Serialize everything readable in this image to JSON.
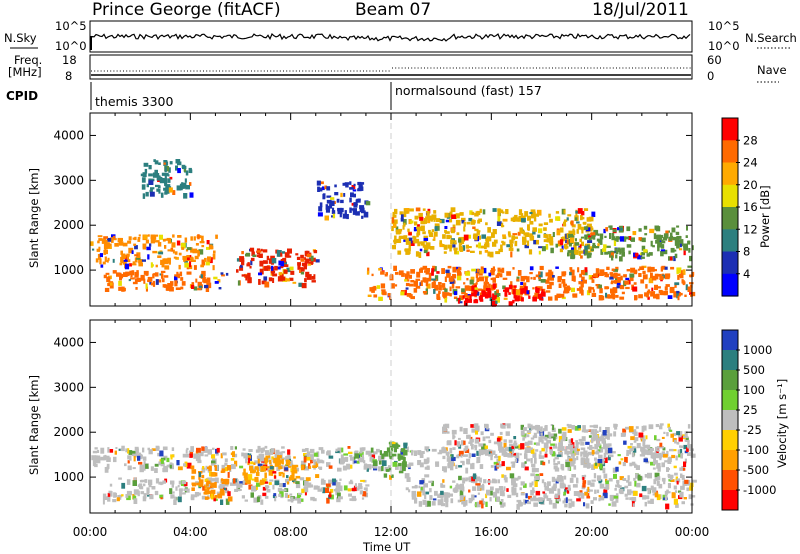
{
  "header": {
    "station": "Prince George (fitACF)",
    "beam": "Beam 07",
    "date": "18/Jul/2011"
  },
  "small_panels": {
    "nsky_label": "N.Sky",
    "nsky_ticks": [
      "10^5",
      "10^0"
    ],
    "nsearch_label": "N.Search",
    "nsearch_ticks": [
      "10^5",
      "10^0"
    ],
    "freq_label_1": "Freq.",
    "freq_label_2": "[MHz]",
    "freq_ticks": [
      "18",
      "8"
    ],
    "nave_label": "Nave",
    "nave_ticks": [
      "60",
      "0"
    ],
    "cpid_label": "CPID",
    "cpid_segments": [
      {
        "label": "themis 3300",
        "start_hour": 0
      },
      {
        "label": "normalsound (fast) 157",
        "start_hour": 12
      }
    ]
  },
  "chart_data": [
    {
      "type": "heatmap",
      "title": "",
      "xlabel": "",
      "ylabel": "Slant Range [km]",
      "xlim_hours": [
        0,
        24
      ],
      "ylim": [
        200,
        4500
      ],
      "y_ticks": [
        "4000",
        "3000",
        "2000",
        "1000"
      ],
      "colorbar": {
        "label": "Power [dB]",
        "ticks": [
          "28",
          "24",
          "20",
          "16",
          "12",
          "8",
          "4"
        ],
        "colors": [
          "#ff0000",
          "#ff6a00",
          "#ffaa00",
          "#e8e000",
          "#5a8f3c",
          "#2c7f7f",
          "#1c2fb3",
          "#0000ff"
        ]
      },
      "regions": [
        {
          "t0": 0.0,
          "t1": 5.0,
          "r0": 1100,
          "r1": 1800,
          "color": "#ff8c00"
        },
        {
          "t0": 0.5,
          "t1": 5.5,
          "r0": 600,
          "r1": 1000,
          "color": "#ff6a00"
        },
        {
          "t0": 5.8,
          "t1": 9.0,
          "r0": 700,
          "r1": 1500,
          "color": "#e82000"
        },
        {
          "t0": 2.0,
          "t1": 4.0,
          "r0": 2700,
          "r1": 3500,
          "color": "#2c7f7f"
        },
        {
          "t0": 9.0,
          "t1": 11.0,
          "r0": 2200,
          "r1": 3000,
          "color": "#1c2fb3"
        },
        {
          "t0": 11.0,
          "t1": 24.0,
          "r0": 400,
          "r1": 1100,
          "color": "#ff6a00"
        },
        {
          "t0": 12.0,
          "t1": 20.0,
          "r0": 1400,
          "r1": 2400,
          "color": "#e8b000"
        },
        {
          "t0": 14.5,
          "t1": 18.0,
          "r0": 300,
          "r1": 700,
          "color": "#ff0000"
        },
        {
          "t0": 19.0,
          "t1": 24.0,
          "r0": 1300,
          "r1": 2000,
          "color": "#5a8f3c"
        }
      ]
    },
    {
      "type": "heatmap",
      "title": "",
      "xlabel": "Time UT",
      "ylabel": "Slant Range [km]",
      "xlim_hours": [
        0,
        24
      ],
      "ylim": [
        200,
        4500
      ],
      "y_ticks": [
        "4000",
        "3000",
        "2000",
        "1000"
      ],
      "x_ticks": [
        "00:00",
        "04:00",
        "08:00",
        "12:00",
        "16:00",
        "20:00",
        "00:00"
      ],
      "colorbar": {
        "label": "Velocity [m s⁻¹]",
        "ticks": [
          "1000",
          "500",
          "100",
          "25",
          "-25",
          "-100",
          "-500",
          "-1000"
        ],
        "colors": [
          "#2040c0",
          "#2c7f7f",
          "#5a9f3c",
          "#70d030",
          "#bebebe",
          "#ffd000",
          "#ffa000",
          "#ff5000",
          "#ff0000"
        ]
      },
      "regions": [
        {
          "t0": 0.0,
          "t1": 24.0,
          "r0": 1200,
          "r1": 1700,
          "color": "#bebebe"
        },
        {
          "t0": 0.5,
          "t1": 11.0,
          "r0": 500,
          "r1": 1000,
          "color": "#bebebe"
        },
        {
          "t0": 4.0,
          "t1": 5.5,
          "r0": 500,
          "r1": 1300,
          "color": "#ff9000"
        },
        {
          "t0": 6.0,
          "t1": 9.0,
          "r0": 900,
          "r1": 1500,
          "color": "#ffa000"
        },
        {
          "t0": 11.5,
          "t1": 12.5,
          "r0": 1000,
          "r1": 1800,
          "color": "#5a9f3c"
        },
        {
          "t0": 12.5,
          "t1": 24.0,
          "r0": 400,
          "r1": 1100,
          "color": "#bebebe"
        },
        {
          "t0": 14.0,
          "t1": 24.0,
          "r0": 1500,
          "r1": 2200,
          "color": "#bebebe"
        }
      ]
    }
  ]
}
